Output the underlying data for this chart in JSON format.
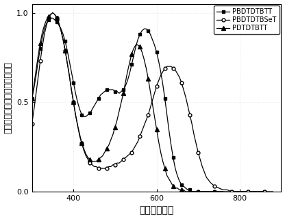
{
  "xlabel": "波长（纳米）",
  "ylabel": "归一化的吸收强度（任意单位）",
  "xlim": [
    300,
    900
  ],
  "ylim": [
    0.0,
    1.05
  ],
  "yticks": [
    0.0,
    0.5,
    1.0
  ],
  "xticks": [
    400,
    600,
    800
  ],
  "legend": [
    "PBDTDTBTT",
    "PBDTDTBSeT",
    "PDTDTBTT"
  ],
  "background_color": "#ffffff",
  "grid_color": "#d0d0d0",
  "PBDTDTBTT": {
    "x": [
      300,
      305,
      310,
      315,
      320,
      325,
      330,
      335,
      340,
      345,
      350,
      355,
      360,
      365,
      370,
      375,
      380,
      385,
      390,
      395,
      400,
      405,
      410,
      415,
      420,
      425,
      430,
      435,
      440,
      445,
      450,
      455,
      460,
      465,
      470,
      475,
      480,
      485,
      490,
      495,
      500,
      505,
      510,
      515,
      520,
      525,
      530,
      535,
      540,
      545,
      550,
      555,
      560,
      565,
      570,
      575,
      580,
      585,
      590,
      595,
      600,
      605,
      610,
      615,
      620,
      625,
      630,
      635,
      640,
      645,
      650,
      655,
      660,
      665,
      670,
      675,
      680,
      685,
      690,
      695,
      700,
      710,
      720,
      730,
      740,
      750,
      760,
      770,
      780,
      790,
      800,
      810,
      820,
      830,
      840,
      850,
      860
    ],
    "y": [
      0.52,
      0.58,
      0.65,
      0.73,
      0.8,
      0.86,
      0.91,
      0.94,
      0.96,
      0.97,
      0.97,
      0.96,
      0.95,
      0.93,
      0.91,
      0.88,
      0.84,
      0.79,
      0.73,
      0.67,
      0.61,
      0.55,
      0.5,
      0.46,
      0.43,
      0.42,
      0.42,
      0.43,
      0.44,
      0.46,
      0.48,
      0.5,
      0.52,
      0.54,
      0.55,
      0.56,
      0.57,
      0.57,
      0.57,
      0.57,
      0.56,
      0.56,
      0.55,
      0.56,
      0.57,
      0.59,
      0.62,
      0.66,
      0.71,
      0.76,
      0.81,
      0.85,
      0.88,
      0.9,
      0.91,
      0.91,
      0.9,
      0.88,
      0.85,
      0.82,
      0.78,
      0.73,
      0.67,
      0.6,
      0.52,
      0.43,
      0.34,
      0.26,
      0.19,
      0.13,
      0.09,
      0.06,
      0.04,
      0.03,
      0.02,
      0.01,
      0.01,
      0.0,
      0.0,
      0.0,
      0.0,
      0.0,
      0.0,
      0.0,
      0.0,
      0.0,
      0.0,
      0.0,
      0.0,
      0.0,
      0.0,
      0.0,
      0.0,
      0.0,
      0.0,
      0.0,
      0.0
    ]
  },
  "PBDTDTBSeT": {
    "x": [
      300,
      305,
      310,
      315,
      320,
      325,
      330,
      335,
      340,
      345,
      350,
      355,
      360,
      365,
      370,
      375,
      380,
      385,
      390,
      395,
      400,
      405,
      410,
      415,
      420,
      425,
      430,
      435,
      440,
      445,
      450,
      455,
      460,
      465,
      470,
      475,
      480,
      485,
      490,
      495,
      500,
      505,
      510,
      515,
      520,
      525,
      530,
      535,
      540,
      545,
      550,
      555,
      560,
      565,
      570,
      575,
      580,
      585,
      590,
      595,
      600,
      605,
      610,
      615,
      620,
      625,
      630,
      635,
      640,
      645,
      650,
      655,
      660,
      665,
      670,
      675,
      680,
      685,
      690,
      695,
      700,
      710,
      720,
      730,
      740,
      750,
      760,
      770,
      780,
      790,
      800,
      810,
      820,
      830,
      840,
      850,
      860,
      870,
      880
    ],
    "y": [
      0.38,
      0.46,
      0.55,
      0.64,
      0.73,
      0.81,
      0.88,
      0.93,
      0.97,
      0.99,
      1.0,
      0.99,
      0.97,
      0.94,
      0.9,
      0.85,
      0.79,
      0.72,
      0.65,
      0.57,
      0.5,
      0.43,
      0.37,
      0.31,
      0.27,
      0.23,
      0.2,
      0.18,
      0.16,
      0.15,
      0.14,
      0.14,
      0.13,
      0.13,
      0.13,
      0.13,
      0.13,
      0.14,
      0.14,
      0.15,
      0.15,
      0.16,
      0.16,
      0.17,
      0.18,
      0.19,
      0.2,
      0.21,
      0.22,
      0.24,
      0.26,
      0.28,
      0.31,
      0.34,
      0.37,
      0.4,
      0.43,
      0.47,
      0.51,
      0.55,
      0.59,
      0.62,
      0.65,
      0.67,
      0.69,
      0.7,
      0.7,
      0.7,
      0.69,
      0.68,
      0.66,
      0.64,
      0.61,
      0.57,
      0.53,
      0.48,
      0.43,
      0.38,
      0.32,
      0.27,
      0.22,
      0.14,
      0.08,
      0.05,
      0.03,
      0.02,
      0.01,
      0.01,
      0.0,
      0.0,
      0.0,
      0.0,
      0.0,
      0.0,
      0.0,
      0.0,
      0.0,
      0.0,
      0.0
    ]
  },
  "PDTDTBTT": {
    "x": [
      300,
      305,
      310,
      315,
      320,
      325,
      330,
      335,
      340,
      345,
      350,
      355,
      360,
      365,
      370,
      375,
      380,
      385,
      390,
      395,
      400,
      405,
      410,
      415,
      420,
      425,
      430,
      435,
      440,
      445,
      450,
      455,
      460,
      465,
      470,
      475,
      480,
      485,
      490,
      495,
      500,
      505,
      510,
      515,
      520,
      525,
      530,
      535,
      540,
      545,
      550,
      555,
      560,
      565,
      570,
      575,
      580,
      585,
      590,
      595,
      600,
      605,
      610,
      615,
      620,
      625,
      630,
      635,
      640,
      645,
      650,
      655,
      660,
      665,
      670,
      675,
      680,
      685,
      690,
      695,
      700,
      710,
      720,
      730,
      740,
      750,
      760
    ],
    "y": [
      0.52,
      0.6,
      0.68,
      0.76,
      0.83,
      0.89,
      0.93,
      0.96,
      0.98,
      0.99,
      1.0,
      0.99,
      0.97,
      0.94,
      0.9,
      0.85,
      0.79,
      0.72,
      0.65,
      0.57,
      0.5,
      0.43,
      0.37,
      0.32,
      0.27,
      0.24,
      0.21,
      0.19,
      0.18,
      0.17,
      0.17,
      0.17,
      0.18,
      0.19,
      0.2,
      0.22,
      0.24,
      0.26,
      0.29,
      0.32,
      0.36,
      0.4,
      0.45,
      0.5,
      0.55,
      0.61,
      0.67,
      0.72,
      0.77,
      0.8,
      0.82,
      0.82,
      0.81,
      0.78,
      0.74,
      0.69,
      0.63,
      0.56,
      0.49,
      0.42,
      0.35,
      0.28,
      0.22,
      0.17,
      0.13,
      0.09,
      0.07,
      0.05,
      0.03,
      0.02,
      0.02,
      0.01,
      0.01,
      0.01,
      0.0,
      0.0,
      0.0,
      0.0,
      0.0,
      0.0,
      0.0,
      0.0,
      0.0,
      0.0,
      0.0,
      0.0,
      0.0
    ]
  }
}
